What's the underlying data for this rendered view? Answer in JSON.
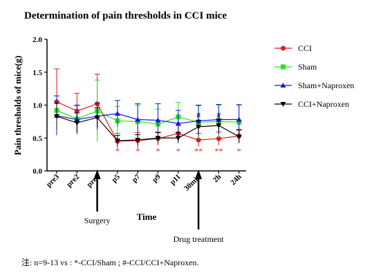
{
  "chart_data": {
    "type": "line",
    "title": "Determination of pain thresholds in CCI mice",
    "xlabel": "Time",
    "ylabel": "Pain thresholds of mice(g)",
    "ylim": [
      0,
      2.0
    ],
    "yticks": [
      "0.0",
      "0.5",
      "1.0",
      "1.5",
      "2.0"
    ],
    "categories": [
      "pre3",
      "pre2",
      "pre1",
      "p5",
      "p7",
      "p9",
      "p11",
      "30min",
      "2h",
      "24h"
    ],
    "legend_position": "right",
    "series": [
      {
        "name": "CCI",
        "color": "#e8141b",
        "marker": "circle",
        "values": [
          1.05,
          0.91,
          1.02,
          0.45,
          0.46,
          0.49,
          0.57,
          0.47,
          0.49,
          0.53
        ],
        "err": [
          0.5,
          0.27,
          0.45,
          0.12,
          0.12,
          0.1,
          0.12,
          0.1,
          0.1,
          0.1
        ]
      },
      {
        "name": "Sham",
        "color": "#22e61e",
        "marker": "square",
        "values": [
          0.92,
          0.79,
          0.91,
          0.76,
          0.75,
          0.71,
          0.82,
          0.74,
          0.75,
          0.74
        ],
        "err": [
          0.22,
          0.2,
          0.47,
          0.22,
          0.25,
          0.23,
          0.22,
          0.25,
          0.25,
          0.25
        ]
      },
      {
        "name": "Sham+Naproxen",
        "color": "#1414e6",
        "marker": "triangle-up",
        "values": [
          0.84,
          0.78,
          0.83,
          0.87,
          0.78,
          0.77,
          0.72,
          0.76,
          0.78,
          0.78
        ],
        "err": [
          0.3,
          0.22,
          0.2,
          0.2,
          0.24,
          0.25,
          0.2,
          0.24,
          0.23,
          0.23
        ]
      },
      {
        "name": "CCI+Naproxen",
        "color": "#000000",
        "marker": "triangle-down",
        "values": [
          0.83,
          0.73,
          0.81,
          0.46,
          0.47,
          0.5,
          0.5,
          0.67,
          0.69,
          0.52
        ],
        "err": [
          0.2,
          0.15,
          0.15,
          0.08,
          0.08,
          0.08,
          0.08,
          0.1,
          0.1,
          0.1
        ]
      }
    ],
    "significance": [
      {
        "category": "p5",
        "label": "*"
      },
      {
        "category": "p7",
        "label": "*"
      },
      {
        "category": "p9",
        "label": "*"
      },
      {
        "category": "p11",
        "label": "*"
      },
      {
        "category": "30min",
        "label": "**"
      },
      {
        "category": "2h",
        "label": "**"
      },
      {
        "category": "24h",
        "label": "*"
      }
    ],
    "hash_marks": [
      {
        "category": "30min",
        "label": "#"
      },
      {
        "category": "2h",
        "label": "#"
      }
    ],
    "annotations": [
      {
        "category": "pre1",
        "label": "Surgery"
      },
      {
        "category": "30min",
        "label": "Drug treatment"
      }
    ]
  },
  "footnote": "注: n=9-13    vs : *-CCI/Sham ; #-CCI/CCI+Naproxen."
}
